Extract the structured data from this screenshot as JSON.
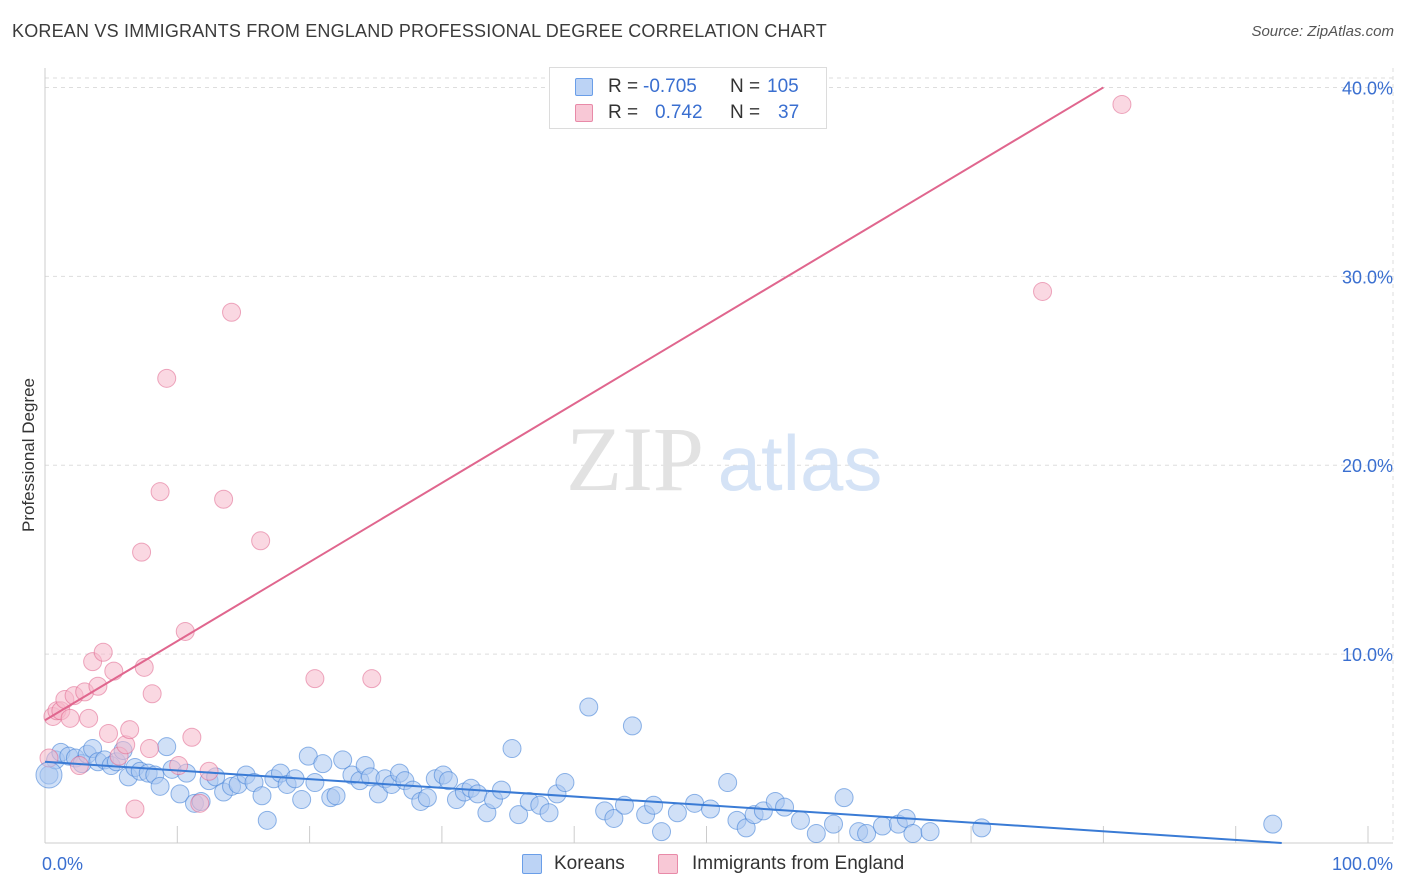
{
  "title": "KOREAN VS IMMIGRANTS FROM ENGLAND PROFESSIONAL DEGREE CORRELATION CHART",
  "source": "Source: ZipAtlas.com",
  "watermark": {
    "zip": "ZIP",
    "atlas": "atlas"
  },
  "legend": {
    "r_label": "R =",
    "n_label": "N =",
    "rows": [
      {
        "name": "Koreans",
        "r": "-0.705",
        "n": "105",
        "color": "#6a9ee8",
        "fill": "#bcd3f5"
      },
      {
        "name": "Immigrants from England",
        "r": "0.742",
        "n": "37",
        "color": "#e88aa8",
        "fill": "#f8c8d6"
      }
    ]
  },
  "chart_data": {
    "type": "scatter",
    "title": "KOREAN VS IMMIGRANTS FROM ENGLAND PROFESSIONAL DEGREE CORRELATION CHART",
    "xlabel": "",
    "ylabel": "Professional Degree",
    "xlim": [
      0,
      100
    ],
    "ylim": [
      0,
      40.5
    ],
    "x_tick_labels": [
      "0.0%",
      "100.0%"
    ],
    "y_ticks": [
      10,
      20,
      30,
      40
    ],
    "y_tick_labels": [
      "10.0%",
      "20.0%",
      "30.0%",
      "40.0%"
    ],
    "grid": true,
    "legend_position": "top-center",
    "series": [
      {
        "name": "Koreans",
        "color": "#3a7bd5",
        "fill": "#a9c6f0",
        "trend": {
          "x": [
            0,
            100
          ],
          "y": [
            4.3,
            -0.3
          ]
        },
        "points": [
          [
            0.3,
            3.6
          ],
          [
            0.8,
            4.4
          ],
          [
            1.2,
            4.8
          ],
          [
            1.8,
            4.6
          ],
          [
            2.3,
            4.5
          ],
          [
            2.8,
            4.2
          ],
          [
            3.2,
            4.7
          ],
          [
            3.6,
            5.0
          ],
          [
            4.0,
            4.3
          ],
          [
            4.5,
            4.4
          ],
          [
            5.0,
            4.1
          ],
          [
            5.4,
            4.3
          ],
          [
            5.9,
            4.9
          ],
          [
            6.3,
            3.5
          ],
          [
            6.8,
            4.0
          ],
          [
            7.2,
            3.8
          ],
          [
            7.8,
            3.7
          ],
          [
            8.3,
            3.6
          ],
          [
            8.7,
            3.0
          ],
          [
            9.2,
            5.1
          ],
          [
            9.6,
            3.9
          ],
          [
            10.2,
            2.6
          ],
          [
            10.7,
            3.7
          ],
          [
            11.3,
            2.1
          ],
          [
            11.8,
            2.2
          ],
          [
            12.4,
            3.3
          ],
          [
            12.9,
            3.5
          ],
          [
            13.5,
            2.7
          ],
          [
            14.1,
            3.0
          ],
          [
            14.6,
            3.1
          ],
          [
            15.2,
            3.6
          ],
          [
            15.8,
            3.2
          ],
          [
            16.4,
            2.5
          ],
          [
            16.8,
            1.2
          ],
          [
            17.3,
            3.4
          ],
          [
            17.8,
            3.7
          ],
          [
            18.3,
            3.1
          ],
          [
            18.9,
            3.4
          ],
          [
            19.4,
            2.3
          ],
          [
            19.9,
            4.6
          ],
          [
            20.4,
            3.2
          ],
          [
            21.0,
            4.2
          ],
          [
            21.6,
            2.4
          ],
          [
            22.0,
            2.5
          ],
          [
            22.5,
            4.4
          ],
          [
            23.2,
            3.6
          ],
          [
            23.8,
            3.3
          ],
          [
            24.2,
            4.1
          ],
          [
            24.6,
            3.5
          ],
          [
            25.2,
            2.6
          ],
          [
            25.7,
            3.4
          ],
          [
            26.2,
            3.1
          ],
          [
            26.8,
            3.7
          ],
          [
            27.2,
            3.3
          ],
          [
            27.8,
            2.8
          ],
          [
            28.4,
            2.2
          ],
          [
            28.9,
            2.4
          ],
          [
            29.5,
            3.4
          ],
          [
            30.1,
            3.6
          ],
          [
            30.5,
            3.3
          ],
          [
            31.1,
            2.3
          ],
          [
            31.7,
            2.7
          ],
          [
            32.2,
            2.9
          ],
          [
            32.7,
            2.6
          ],
          [
            33.4,
            1.6
          ],
          [
            33.9,
            2.3
          ],
          [
            34.5,
            2.8
          ],
          [
            35.3,
            5.0
          ],
          [
            35.8,
            1.5
          ],
          [
            36.6,
            2.2
          ],
          [
            37.4,
            2.0
          ],
          [
            38.1,
            1.6
          ],
          [
            38.7,
            2.6
          ],
          [
            39.3,
            3.2
          ],
          [
            41.1,
            7.2
          ],
          [
            42.3,
            1.7
          ],
          [
            43.0,
            1.3
          ],
          [
            43.8,
            2.0
          ],
          [
            44.4,
            6.2
          ],
          [
            45.4,
            1.5
          ],
          [
            46.0,
            2.0
          ],
          [
            46.6,
            0.6
          ],
          [
            47.8,
            1.6
          ],
          [
            49.1,
            2.1
          ],
          [
            50.3,
            1.8
          ],
          [
            51.6,
            3.2
          ],
          [
            52.3,
            1.2
          ],
          [
            53.0,
            0.8
          ],
          [
            53.6,
            1.5
          ],
          [
            54.3,
            1.7
          ],
          [
            55.2,
            2.2
          ],
          [
            55.9,
            1.9
          ],
          [
            57.1,
            1.2
          ],
          [
            58.3,
            0.5
          ],
          [
            59.6,
            1.0
          ],
          [
            60.4,
            2.4
          ],
          [
            61.5,
            0.6
          ],
          [
            62.1,
            0.5
          ],
          [
            63.3,
            0.9
          ],
          [
            64.5,
            1.0
          ],
          [
            65.1,
            1.3
          ],
          [
            65.6,
            0.5
          ],
          [
            66.9,
            0.6
          ],
          [
            70.8,
            0.8
          ],
          [
            92.8,
            1.0
          ]
        ]
      },
      {
        "name": "Immigrants from England",
        "color": "#e0668e",
        "fill": "#f5b8cb",
        "trend": {
          "x": [
            0,
            80
          ],
          "y": [
            6.5,
            40.0
          ]
        },
        "points": [
          [
            0.3,
            4.5
          ],
          [
            0.6,
            6.7
          ],
          [
            0.9,
            7.0
          ],
          [
            1.2,
            7.0
          ],
          [
            1.5,
            7.6
          ],
          [
            1.9,
            6.6
          ],
          [
            2.2,
            7.8
          ],
          [
            2.6,
            4.1
          ],
          [
            3.0,
            8.0
          ],
          [
            3.3,
            6.6
          ],
          [
            3.6,
            9.6
          ],
          [
            4.0,
            8.3
          ],
          [
            4.4,
            10.1
          ],
          [
            4.8,
            5.8
          ],
          [
            5.2,
            9.1
          ],
          [
            5.6,
            4.6
          ],
          [
            6.1,
            5.2
          ],
          [
            6.4,
            6.0
          ],
          [
            6.8,
            1.8
          ],
          [
            7.3,
            15.4
          ],
          [
            7.5,
            9.3
          ],
          [
            7.9,
            5.0
          ],
          [
            8.1,
            7.9
          ],
          [
            8.7,
            18.6
          ],
          [
            9.2,
            24.6
          ],
          [
            10.1,
            4.1
          ],
          [
            10.6,
            11.2
          ],
          [
            11.1,
            5.6
          ],
          [
            11.7,
            2.1
          ],
          [
            12.4,
            3.8
          ],
          [
            13.5,
            18.2
          ],
          [
            14.1,
            28.1
          ],
          [
            16.3,
            16.0
          ],
          [
            20.4,
            8.7
          ],
          [
            24.7,
            8.7
          ],
          [
            75.4,
            29.2
          ],
          [
            81.4,
            39.1
          ]
        ]
      }
    ]
  }
}
